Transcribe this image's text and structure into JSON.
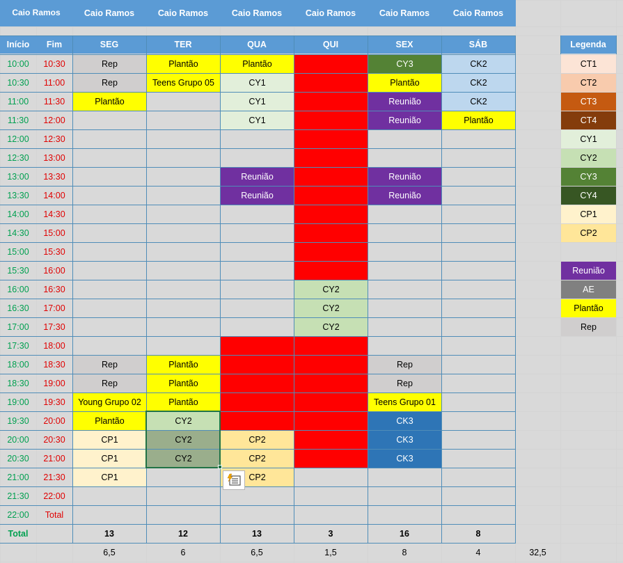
{
  "title_cells": [
    "Caio Ramos",
    "Caio Ramos",
    "Caio Ramos",
    "Caio Ramos",
    "Caio Ramos",
    "Caio Ramos",
    "Caio Ramos"
  ],
  "headers": {
    "inicio": "Início",
    "fim": "Fim",
    "days": [
      "SEG",
      "TER",
      "QUA",
      "QUI",
      "SEX",
      "SÁB"
    ],
    "legend_title": "Legenda"
  },
  "times": [
    [
      "10:00",
      "10:30"
    ],
    [
      "10:30",
      "11:00"
    ],
    [
      "11:00",
      "11:30"
    ],
    [
      "11:30",
      "12:00"
    ],
    [
      "12:00",
      "12:30"
    ],
    [
      "12:30",
      "13:00"
    ],
    [
      "13:00",
      "13:30"
    ],
    [
      "13:30",
      "14:00"
    ],
    [
      "14:00",
      "14:30"
    ],
    [
      "14:30",
      "15:00"
    ],
    [
      "15:00",
      "15:30"
    ],
    [
      "15:30",
      "16:00"
    ],
    [
      "16:00",
      "16:30"
    ],
    [
      "16:30",
      "17:00"
    ],
    [
      "17:00",
      "17:30"
    ],
    [
      "17:30",
      "18:00"
    ],
    [
      "18:00",
      "18:30"
    ],
    [
      "18:30",
      "19:00"
    ],
    [
      "19:00",
      "19:30"
    ],
    [
      "19:30",
      "20:00"
    ],
    [
      "20:00",
      "20:30"
    ],
    [
      "20:30",
      "21:00"
    ],
    [
      "21:00",
      "21:30"
    ],
    [
      "21:30",
      "22:00"
    ],
    [
      "22:00",
      "Total"
    ]
  ],
  "schedule": [
    [
      {
        "t": "Rep",
        "bg": "#d0cece"
      },
      {
        "t": "Plantão",
        "bg": "#ffff00"
      },
      {
        "t": "Plantão",
        "bg": "#ffff00"
      },
      {
        "t": "",
        "bg": "#ff0000"
      },
      {
        "t": "CY3",
        "bg": "#548235",
        "fg": "#fff"
      },
      {
        "t": "CK2",
        "bg": "#bdd7ee"
      }
    ],
    [
      {
        "t": "Rep",
        "bg": "#d0cece"
      },
      {
        "t": "Teens Grupo 05",
        "bg": "#ffff00"
      },
      {
        "t": "CY1",
        "bg": "#e2efda"
      },
      {
        "t": "",
        "bg": "#ff0000"
      },
      {
        "t": "Plantão",
        "bg": "#ffff00"
      },
      {
        "t": "CK2",
        "bg": "#bdd7ee"
      }
    ],
    [
      {
        "t": "Plantão",
        "bg": "#ffff00"
      },
      {
        "t": "",
        "bg": ""
      },
      {
        "t": "CY1",
        "bg": "#e2efda"
      },
      {
        "t": "",
        "bg": "#ff0000"
      },
      {
        "t": "Reunião",
        "bg": "#7030a0",
        "fg": "#fff"
      },
      {
        "t": "CK2",
        "bg": "#bdd7ee"
      }
    ],
    [
      {
        "t": "",
        "bg": ""
      },
      {
        "t": "",
        "bg": ""
      },
      {
        "t": "CY1",
        "bg": "#e2efda"
      },
      {
        "t": "",
        "bg": "#ff0000"
      },
      {
        "t": "Reunião",
        "bg": "#7030a0",
        "fg": "#fff"
      },
      {
        "t": "Plantão",
        "bg": "#ffff00"
      }
    ],
    [
      {
        "t": "",
        "bg": ""
      },
      {
        "t": "",
        "bg": ""
      },
      {
        "t": "",
        "bg": ""
      },
      {
        "t": "",
        "bg": "#ff0000"
      },
      {
        "t": "",
        "bg": ""
      },
      {
        "t": "",
        "bg": ""
      }
    ],
    [
      {
        "t": "",
        "bg": ""
      },
      {
        "t": "",
        "bg": ""
      },
      {
        "t": "",
        "bg": ""
      },
      {
        "t": "",
        "bg": "#ff0000"
      },
      {
        "t": "",
        "bg": ""
      },
      {
        "t": "",
        "bg": ""
      }
    ],
    [
      {
        "t": "",
        "bg": ""
      },
      {
        "t": "",
        "bg": ""
      },
      {
        "t": "Reunião",
        "bg": "#7030a0",
        "fg": "#fff"
      },
      {
        "t": "",
        "bg": "#ff0000"
      },
      {
        "t": "Reunião",
        "bg": "#7030a0",
        "fg": "#fff"
      },
      {
        "t": "",
        "bg": ""
      }
    ],
    [
      {
        "t": "",
        "bg": ""
      },
      {
        "t": "",
        "bg": ""
      },
      {
        "t": "Reunião",
        "bg": "#7030a0",
        "fg": "#fff"
      },
      {
        "t": "",
        "bg": "#ff0000"
      },
      {
        "t": "Reunião",
        "bg": "#7030a0",
        "fg": "#fff"
      },
      {
        "t": "",
        "bg": ""
      }
    ],
    [
      {
        "t": "",
        "bg": ""
      },
      {
        "t": "",
        "bg": ""
      },
      {
        "t": "",
        "bg": ""
      },
      {
        "t": "",
        "bg": "#ff0000"
      },
      {
        "t": "",
        "bg": ""
      },
      {
        "t": "",
        "bg": ""
      }
    ],
    [
      {
        "t": "",
        "bg": ""
      },
      {
        "t": "",
        "bg": ""
      },
      {
        "t": "",
        "bg": ""
      },
      {
        "t": "",
        "bg": "#ff0000"
      },
      {
        "t": "",
        "bg": ""
      },
      {
        "t": "",
        "bg": ""
      }
    ],
    [
      {
        "t": "",
        "bg": ""
      },
      {
        "t": "",
        "bg": ""
      },
      {
        "t": "",
        "bg": ""
      },
      {
        "t": "",
        "bg": "#ff0000"
      },
      {
        "t": "",
        "bg": ""
      },
      {
        "t": "",
        "bg": ""
      }
    ],
    [
      {
        "t": "",
        "bg": ""
      },
      {
        "t": "",
        "bg": ""
      },
      {
        "t": "",
        "bg": ""
      },
      {
        "t": "",
        "bg": "#ff0000"
      },
      {
        "t": "",
        "bg": ""
      },
      {
        "t": "",
        "bg": ""
      }
    ],
    [
      {
        "t": "",
        "bg": ""
      },
      {
        "t": "",
        "bg": ""
      },
      {
        "t": "",
        "bg": ""
      },
      {
        "t": "CY2",
        "bg": "#c6e0b4"
      },
      {
        "t": "",
        "bg": ""
      },
      {
        "t": "",
        "bg": ""
      }
    ],
    [
      {
        "t": "",
        "bg": ""
      },
      {
        "t": "",
        "bg": ""
      },
      {
        "t": "",
        "bg": ""
      },
      {
        "t": "CY2",
        "bg": "#c6e0b4"
      },
      {
        "t": "",
        "bg": ""
      },
      {
        "t": "",
        "bg": ""
      }
    ],
    [
      {
        "t": "",
        "bg": ""
      },
      {
        "t": "",
        "bg": ""
      },
      {
        "t": "",
        "bg": ""
      },
      {
        "t": "CY2",
        "bg": "#c6e0b4"
      },
      {
        "t": "",
        "bg": ""
      },
      {
        "t": "",
        "bg": ""
      }
    ],
    [
      {
        "t": "",
        "bg": ""
      },
      {
        "t": "",
        "bg": ""
      },
      {
        "t": "",
        "bg": "#ff0000"
      },
      {
        "t": "",
        "bg": "#ff0000"
      },
      {
        "t": "",
        "bg": ""
      },
      {
        "t": "",
        "bg": ""
      }
    ],
    [
      {
        "t": "Rep",
        "bg": "#d0cece"
      },
      {
        "t": "Plantão",
        "bg": "#ffff00"
      },
      {
        "t": "",
        "bg": "#ff0000"
      },
      {
        "t": "",
        "bg": "#ff0000"
      },
      {
        "t": "Rep",
        "bg": "#d0cece"
      },
      {
        "t": "",
        "bg": ""
      }
    ],
    [
      {
        "t": "Rep",
        "bg": "#d0cece"
      },
      {
        "t": "Plantão",
        "bg": "#ffff00"
      },
      {
        "t": "",
        "bg": "#ff0000"
      },
      {
        "t": "",
        "bg": "#ff0000"
      },
      {
        "t": "Rep",
        "bg": "#d0cece"
      },
      {
        "t": "",
        "bg": ""
      }
    ],
    [
      {
        "t": "Young Grupo 02",
        "bg": "#ffff00"
      },
      {
        "t": "Plantão",
        "bg": "#ffff00"
      },
      {
        "t": "",
        "bg": "#ff0000"
      },
      {
        "t": "",
        "bg": "#ff0000"
      },
      {
        "t": "Teens Grupo 01",
        "bg": "#ffff00"
      },
      {
        "t": "",
        "bg": ""
      }
    ],
    [
      {
        "t": "Plantão",
        "bg": "#ffff00"
      },
      {
        "t": "CY2",
        "bg": "#c6e0b4"
      },
      {
        "t": "",
        "bg": "#ff0000"
      },
      {
        "t": "",
        "bg": "#ff0000"
      },
      {
        "t": "CK3",
        "bg": "#2e75b6",
        "fg": "#fff"
      },
      {
        "t": "",
        "bg": ""
      }
    ],
    [
      {
        "t": "CP1",
        "bg": "#fff2cc"
      },
      {
        "t": "CY2",
        "bg": "#9aae8c"
      },
      {
        "t": "CP2",
        "bg": "#ffe699"
      },
      {
        "t": "",
        "bg": "#ff0000"
      },
      {
        "t": "CK3",
        "bg": "#2e75b6",
        "fg": "#fff"
      },
      {
        "t": "",
        "bg": ""
      }
    ],
    [
      {
        "t": "CP1",
        "bg": "#fff2cc"
      },
      {
        "t": "CY2",
        "bg": "#9aae8c"
      },
      {
        "t": "CP2",
        "bg": "#ffe699"
      },
      {
        "t": "",
        "bg": "#ff0000"
      },
      {
        "t": "CK3",
        "bg": "#2e75b6",
        "fg": "#fff"
      },
      {
        "t": "",
        "bg": ""
      }
    ],
    [
      {
        "t": "CP1",
        "bg": "#fff2cc"
      },
      {
        "t": "",
        "bg": ""
      },
      {
        "t": "CP2",
        "bg": "#ffe699"
      },
      {
        "t": "",
        "bg": ""
      },
      {
        "t": "",
        "bg": ""
      },
      {
        "t": "",
        "bg": ""
      }
    ],
    [
      {
        "t": "",
        "bg": ""
      },
      {
        "t": "",
        "bg": ""
      },
      {
        "t": "",
        "bg": ""
      },
      {
        "t": "",
        "bg": ""
      },
      {
        "t": "",
        "bg": ""
      },
      {
        "t": "",
        "bg": ""
      }
    ],
    [
      {
        "t": "",
        "bg": ""
      },
      {
        "t": "",
        "bg": ""
      },
      {
        "t": "",
        "bg": ""
      },
      {
        "t": "",
        "bg": ""
      },
      {
        "t": "",
        "bg": ""
      },
      {
        "t": "",
        "bg": ""
      }
    ]
  ],
  "totals": {
    "label": "Total",
    "counts": [
      "13",
      "12",
      "13",
      "3",
      "16",
      "8"
    ],
    "hours": [
      "6,5",
      "6",
      "6,5",
      "1,5",
      "8",
      "4"
    ],
    "grand": "32,5"
  },
  "legend": [
    {
      "t": "CT1",
      "bg": "#fce4d6",
      "fg": "#000"
    },
    {
      "t": "CT2",
      "bg": "#f8cbad",
      "fg": "#000"
    },
    {
      "t": "CT3",
      "bg": "#c55a11",
      "fg": "#fff"
    },
    {
      "t": "CT4",
      "bg": "#843c0c",
      "fg": "#fff"
    },
    {
      "t": "CY1",
      "bg": "#e2efda",
      "fg": "#000"
    },
    {
      "t": "CY2",
      "bg": "#c6e0b4",
      "fg": "#000"
    },
    {
      "t": "CY3",
      "bg": "#548235",
      "fg": "#fff"
    },
    {
      "t": "CY4",
      "bg": "#375623",
      "fg": "#fff"
    },
    {
      "t": "CP1",
      "bg": "#fff2cc",
      "fg": "#000"
    },
    {
      "t": "CP2",
      "bg": "#ffe699",
      "fg": "#000"
    },
    {
      "t": "",
      "bg": "",
      "fg": "#000"
    },
    {
      "t": "Reunião",
      "bg": "#7030a0",
      "fg": "#fff"
    },
    {
      "t": "AE",
      "bg": "#808080",
      "fg": "#fff"
    },
    {
      "t": "Plantão",
      "bg": "#ffff00",
      "fg": "#000"
    },
    {
      "t": "Rep",
      "bg": "#d0cece",
      "fg": "#000"
    }
  ],
  "quick_analysis": {
    "icon": "quick-analysis-icon"
  }
}
